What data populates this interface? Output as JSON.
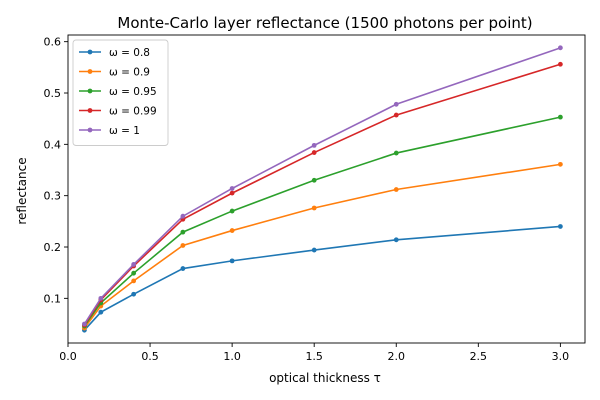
{
  "chart_data": {
    "type": "line",
    "title": "Monte-Carlo layer reflectance (1500 photons per point)",
    "xlabel": "optical thickness τ",
    "ylabel": "reflectance",
    "xlim": [
      0.0,
      3.15
    ],
    "ylim": [
      0.013,
      0.613
    ],
    "xticks": [
      0.0,
      0.5,
      1.0,
      1.5,
      2.0,
      2.5,
      3.0
    ],
    "xtick_labels": [
      "0.0",
      "0.5",
      "1.0",
      "1.5",
      "2.0",
      "2.5",
      "3.0"
    ],
    "yticks": [
      0.1,
      0.2,
      0.3,
      0.4,
      0.5,
      0.6
    ],
    "ytick_labels": [
      "0.1",
      "0.2",
      "0.3",
      "0.4",
      "0.5",
      "0.6"
    ],
    "grid": false,
    "legend_position": "top-left",
    "x": [
      0.1,
      0.2,
      0.4,
      0.7,
      1.0,
      1.5,
      2.0,
      3.0
    ],
    "series": [
      {
        "name": "ω = 0.8",
        "color": "#1f77b4",
        "values": [
          0.038,
          0.073,
          0.108,
          0.158,
          0.173,
          0.194,
          0.214,
          0.24
        ]
      },
      {
        "name": "ω = 0.9",
        "color": "#ff7f0e",
        "values": [
          0.042,
          0.085,
          0.134,
          0.203,
          0.232,
          0.276,
          0.312,
          0.361
        ]
      },
      {
        "name": "ω = 0.95",
        "color": "#2ca02c",
        "values": [
          0.046,
          0.091,
          0.149,
          0.229,
          0.27,
          0.33,
          0.383,
          0.453
        ]
      },
      {
        "name": "ω = 0.99",
        "color": "#d62728",
        "values": [
          0.048,
          0.097,
          0.163,
          0.254,
          0.305,
          0.384,
          0.457,
          0.556
        ]
      },
      {
        "name": "ω = 1",
        "color": "#9467bd",
        "values": [
          0.05,
          0.1,
          0.166,
          0.26,
          0.314,
          0.398,
          0.478,
          0.588
        ]
      }
    ]
  }
}
